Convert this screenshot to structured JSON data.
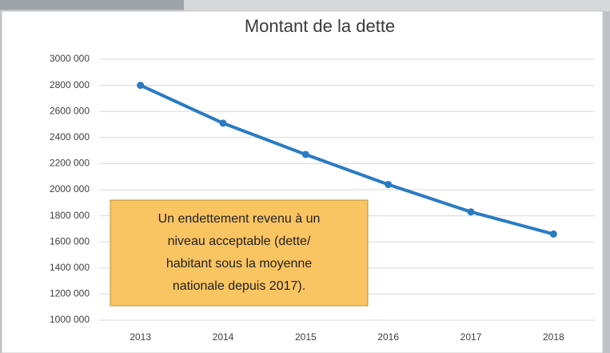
{
  "chart_data": {
    "type": "line",
    "title": "Montant de la dette",
    "categories": [
      "2013",
      "2014",
      "2015",
      "2016",
      "2017",
      "2018"
    ],
    "values": [
      2800000,
      2510000,
      2270000,
      2040000,
      1830000,
      1660000
    ],
    "color": "#2a7bc4",
    "ylim": [
      1000000,
      3000000
    ],
    "yticks": [
      {
        "value": 1000000,
        "label": "1000 000"
      },
      {
        "value": 1200000,
        "label": "1200 000"
      },
      {
        "value": 1400000,
        "label": "1400 000"
      },
      {
        "value": 1600000,
        "label": "1600 000"
      },
      {
        "value": 1800000,
        "label": "1800 000"
      },
      {
        "value": 2000000,
        "label": "2000 000"
      },
      {
        "value": 2200000,
        "label": "2200 000"
      },
      {
        "value": 2400000,
        "label": "2400 000"
      },
      {
        "value": 2600000,
        "label": "2600 000"
      },
      {
        "value": 2800000,
        "label": "2800 000"
      },
      {
        "value": 3000000,
        "label": "3000 000"
      }
    ],
    "grid": true,
    "annotation": [
      "Un endettement revenu à un",
      "niveau acceptable (dette/",
      "habitant sous la moyenne",
      "nationale depuis 2017)."
    ]
  }
}
